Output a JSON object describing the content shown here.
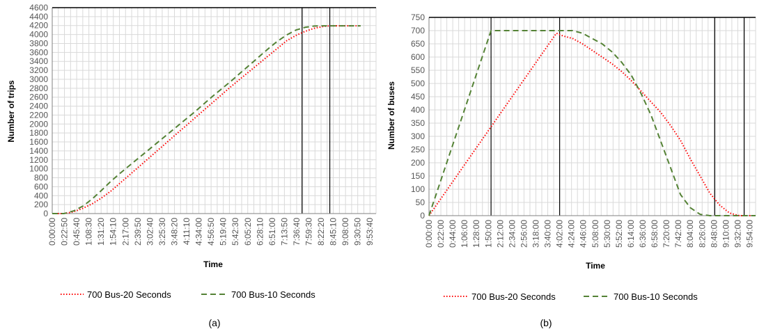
{
  "colors": {
    "series_20s": "#ff0000",
    "series_10s": "#548235",
    "grid": "#d9d9d9",
    "axis": "#000000",
    "tick_text": "#555555"
  },
  "chart_data": [
    {
      "type": "line",
      "caption": "(a)",
      "xlabel": "Time",
      "ylabel": "Number of trips",
      "ylim": [
        0,
        4600
      ],
      "y_ticks": [
        0,
        200,
        400,
        600,
        800,
        1000,
        1200,
        1400,
        1600,
        1800,
        2000,
        2200,
        2400,
        2600,
        2800,
        3000,
        3200,
        3400,
        3600,
        3800,
        4000,
        4200,
        4400,
        4600
      ],
      "x_tick_labels": [
        "0:00:00",
        "0:22:50",
        "0:45:40",
        "1:08:30",
        "1:31:20",
        "1:54:10",
        "2:17:00",
        "2:39:50",
        "3:02:40",
        "3:25:30",
        "3:48:20",
        "4:11:10",
        "4:34:00",
        "4:56:50",
        "5:19:40",
        "5:42:30",
        "6:05:20",
        "6:28:10",
        "6:51:00",
        "7:13:50",
        "7:36:40",
        "7:59:30",
        "8:22:20",
        "8:45:10",
        "9:08:00",
        "9:30:50",
        "9:53:40"
      ],
      "grid": true,
      "legend_position": "bottom",
      "vertical_markers": [
        8.1,
        9.0
      ],
      "series": [
        {
          "name": "700 Bus-20 Seconds",
          "style": "dotted",
          "points": [
            [
              0,
              0
            ],
            [
              0.381,
              0
            ],
            [
              0.7,
              40
            ],
            [
              1.0,
              120
            ],
            [
              1.3,
              220
            ],
            [
              1.6,
              350
            ],
            [
              1.9,
              500
            ],
            [
              2.2,
              680
            ],
            [
              2.5,
              860
            ],
            [
              2.8,
              1040
            ],
            [
              3.1,
              1220
            ],
            [
              3.4,
              1400
            ],
            [
              3.7,
              1580
            ],
            [
              4.0,
              1760
            ],
            [
              4.3,
              1940
            ],
            [
              4.6,
              2120
            ],
            [
              4.9,
              2300
            ],
            [
              5.2,
              2480
            ],
            [
              5.5,
              2660
            ],
            [
              5.8,
              2840
            ],
            [
              6.1,
              3010
            ],
            [
              6.4,
              3180
            ],
            [
              6.7,
              3350
            ],
            [
              7.0,
              3520
            ],
            [
              7.3,
              3690
            ],
            [
              7.6,
              3860
            ],
            [
              7.9,
              3980
            ],
            [
              8.2,
              4070
            ],
            [
              8.5,
              4140
            ],
            [
              8.8,
              4180
            ],
            [
              9.0,
              4195
            ],
            [
              9.3,
              4195
            ],
            [
              10.0,
              4195
            ]
          ]
        },
        {
          "name": "700 Bus-10 Seconds",
          "style": "dashed",
          "points": [
            [
              0,
              0
            ],
            [
              0.381,
              0
            ],
            [
              0.7,
              60
            ],
            [
              1.0,
              170
            ],
            [
              1.3,
              330
            ],
            [
              1.6,
              520
            ],
            [
              1.9,
              720
            ],
            [
              2.2,
              900
            ],
            [
              2.5,
              1070
            ],
            [
              2.8,
              1240
            ],
            [
              3.1,
              1410
            ],
            [
              3.4,
              1580
            ],
            [
              3.7,
              1750
            ],
            [
              4.0,
              1920
            ],
            [
              4.3,
              2090
            ],
            [
              4.6,
              2260
            ],
            [
              4.9,
              2440
            ],
            [
              5.2,
              2620
            ],
            [
              5.5,
              2790
            ],
            [
              5.8,
              2960
            ],
            [
              6.1,
              3140
            ],
            [
              6.4,
              3320
            ],
            [
              6.7,
              3500
            ],
            [
              7.0,
              3680
            ],
            [
              7.3,
              3850
            ],
            [
              7.6,
              3990
            ],
            [
              7.9,
              4100
            ],
            [
              8.2,
              4160
            ],
            [
              8.5,
              4190
            ],
            [
              8.8,
              4195
            ],
            [
              9.0,
              4195
            ],
            [
              10.0,
              4195
            ]
          ]
        }
      ]
    },
    {
      "type": "line",
      "caption": "(b)",
      "xlabel": "Time",
      "ylabel": "Number of buses",
      "ylim": [
        0,
        750
      ],
      "y_ticks": [
        0,
        50,
        100,
        150,
        200,
        250,
        300,
        350,
        400,
        450,
        500,
        550,
        600,
        650,
        700,
        750
      ],
      "x_tick_labels": [
        "0:00:00",
        "0:22:00",
        "0:44:00",
        "1:06:00",
        "1:28:00",
        "1:50:00",
        "2:12:00",
        "2:34:00",
        "2:56:00",
        "3:18:00",
        "3:40:00",
        "4:02:00",
        "4:24:00",
        "4:46:00",
        "5:08:00",
        "5:30:00",
        "5:52:00",
        "6:14:00",
        "6:36:00",
        "6:58:00",
        "7:20:00",
        "7:42:00",
        "8:04:00",
        "8:26:00",
        "8:48:00",
        "9:10:00",
        "9:32:00",
        "9:54:00"
      ],
      "grid": true,
      "legend_position": "bottom",
      "vertical_markers": [
        1.9,
        4.0,
        8.75,
        9.65
      ],
      "series": [
        {
          "name": "700 Bus-20 Seconds",
          "style": "dotted",
          "points": [
            [
              0,
              0
            ],
            [
              3.9,
              690
            ],
            [
              4.1,
              680
            ],
            [
              4.4,
              670
            ],
            [
              4.7,
              650
            ],
            [
              5.0,
              625
            ],
            [
              5.3,
              600
            ],
            [
              5.6,
              575
            ],
            [
              5.9,
              545
            ],
            [
              6.2,
              510
            ],
            [
              6.5,
              470
            ],
            [
              6.8,
              430
            ],
            [
              7.1,
              390
            ],
            [
              7.4,
              340
            ],
            [
              7.7,
              285
            ],
            [
              8.0,
              215
            ],
            [
              8.3,
              150
            ],
            [
              8.6,
              85
            ],
            [
              8.9,
              40
            ],
            [
              9.2,
              10
            ],
            [
              9.5,
              0
            ],
            [
              10.0,
              0
            ]
          ]
        },
        {
          "name": "700 Bus-10 Seconds",
          "style": "dashed",
          "points": [
            [
              0,
              0
            ],
            [
              1.9,
              700
            ],
            [
              4.4,
              700
            ],
            [
              4.7,
              690
            ],
            [
              5.0,
              670
            ],
            [
              5.3,
              650
            ],
            [
              5.6,
              620
            ],
            [
              5.9,
              580
            ],
            [
              6.2,
              530
            ],
            [
              6.5,
              460
            ],
            [
              6.8,
              380
            ],
            [
              7.1,
              280
            ],
            [
              7.4,
              180
            ],
            [
              7.7,
              80
            ],
            [
              8.0,
              30
            ],
            [
              8.3,
              5
            ],
            [
              8.6,
              0
            ],
            [
              10.0,
              0
            ]
          ]
        }
      ]
    }
  ]
}
